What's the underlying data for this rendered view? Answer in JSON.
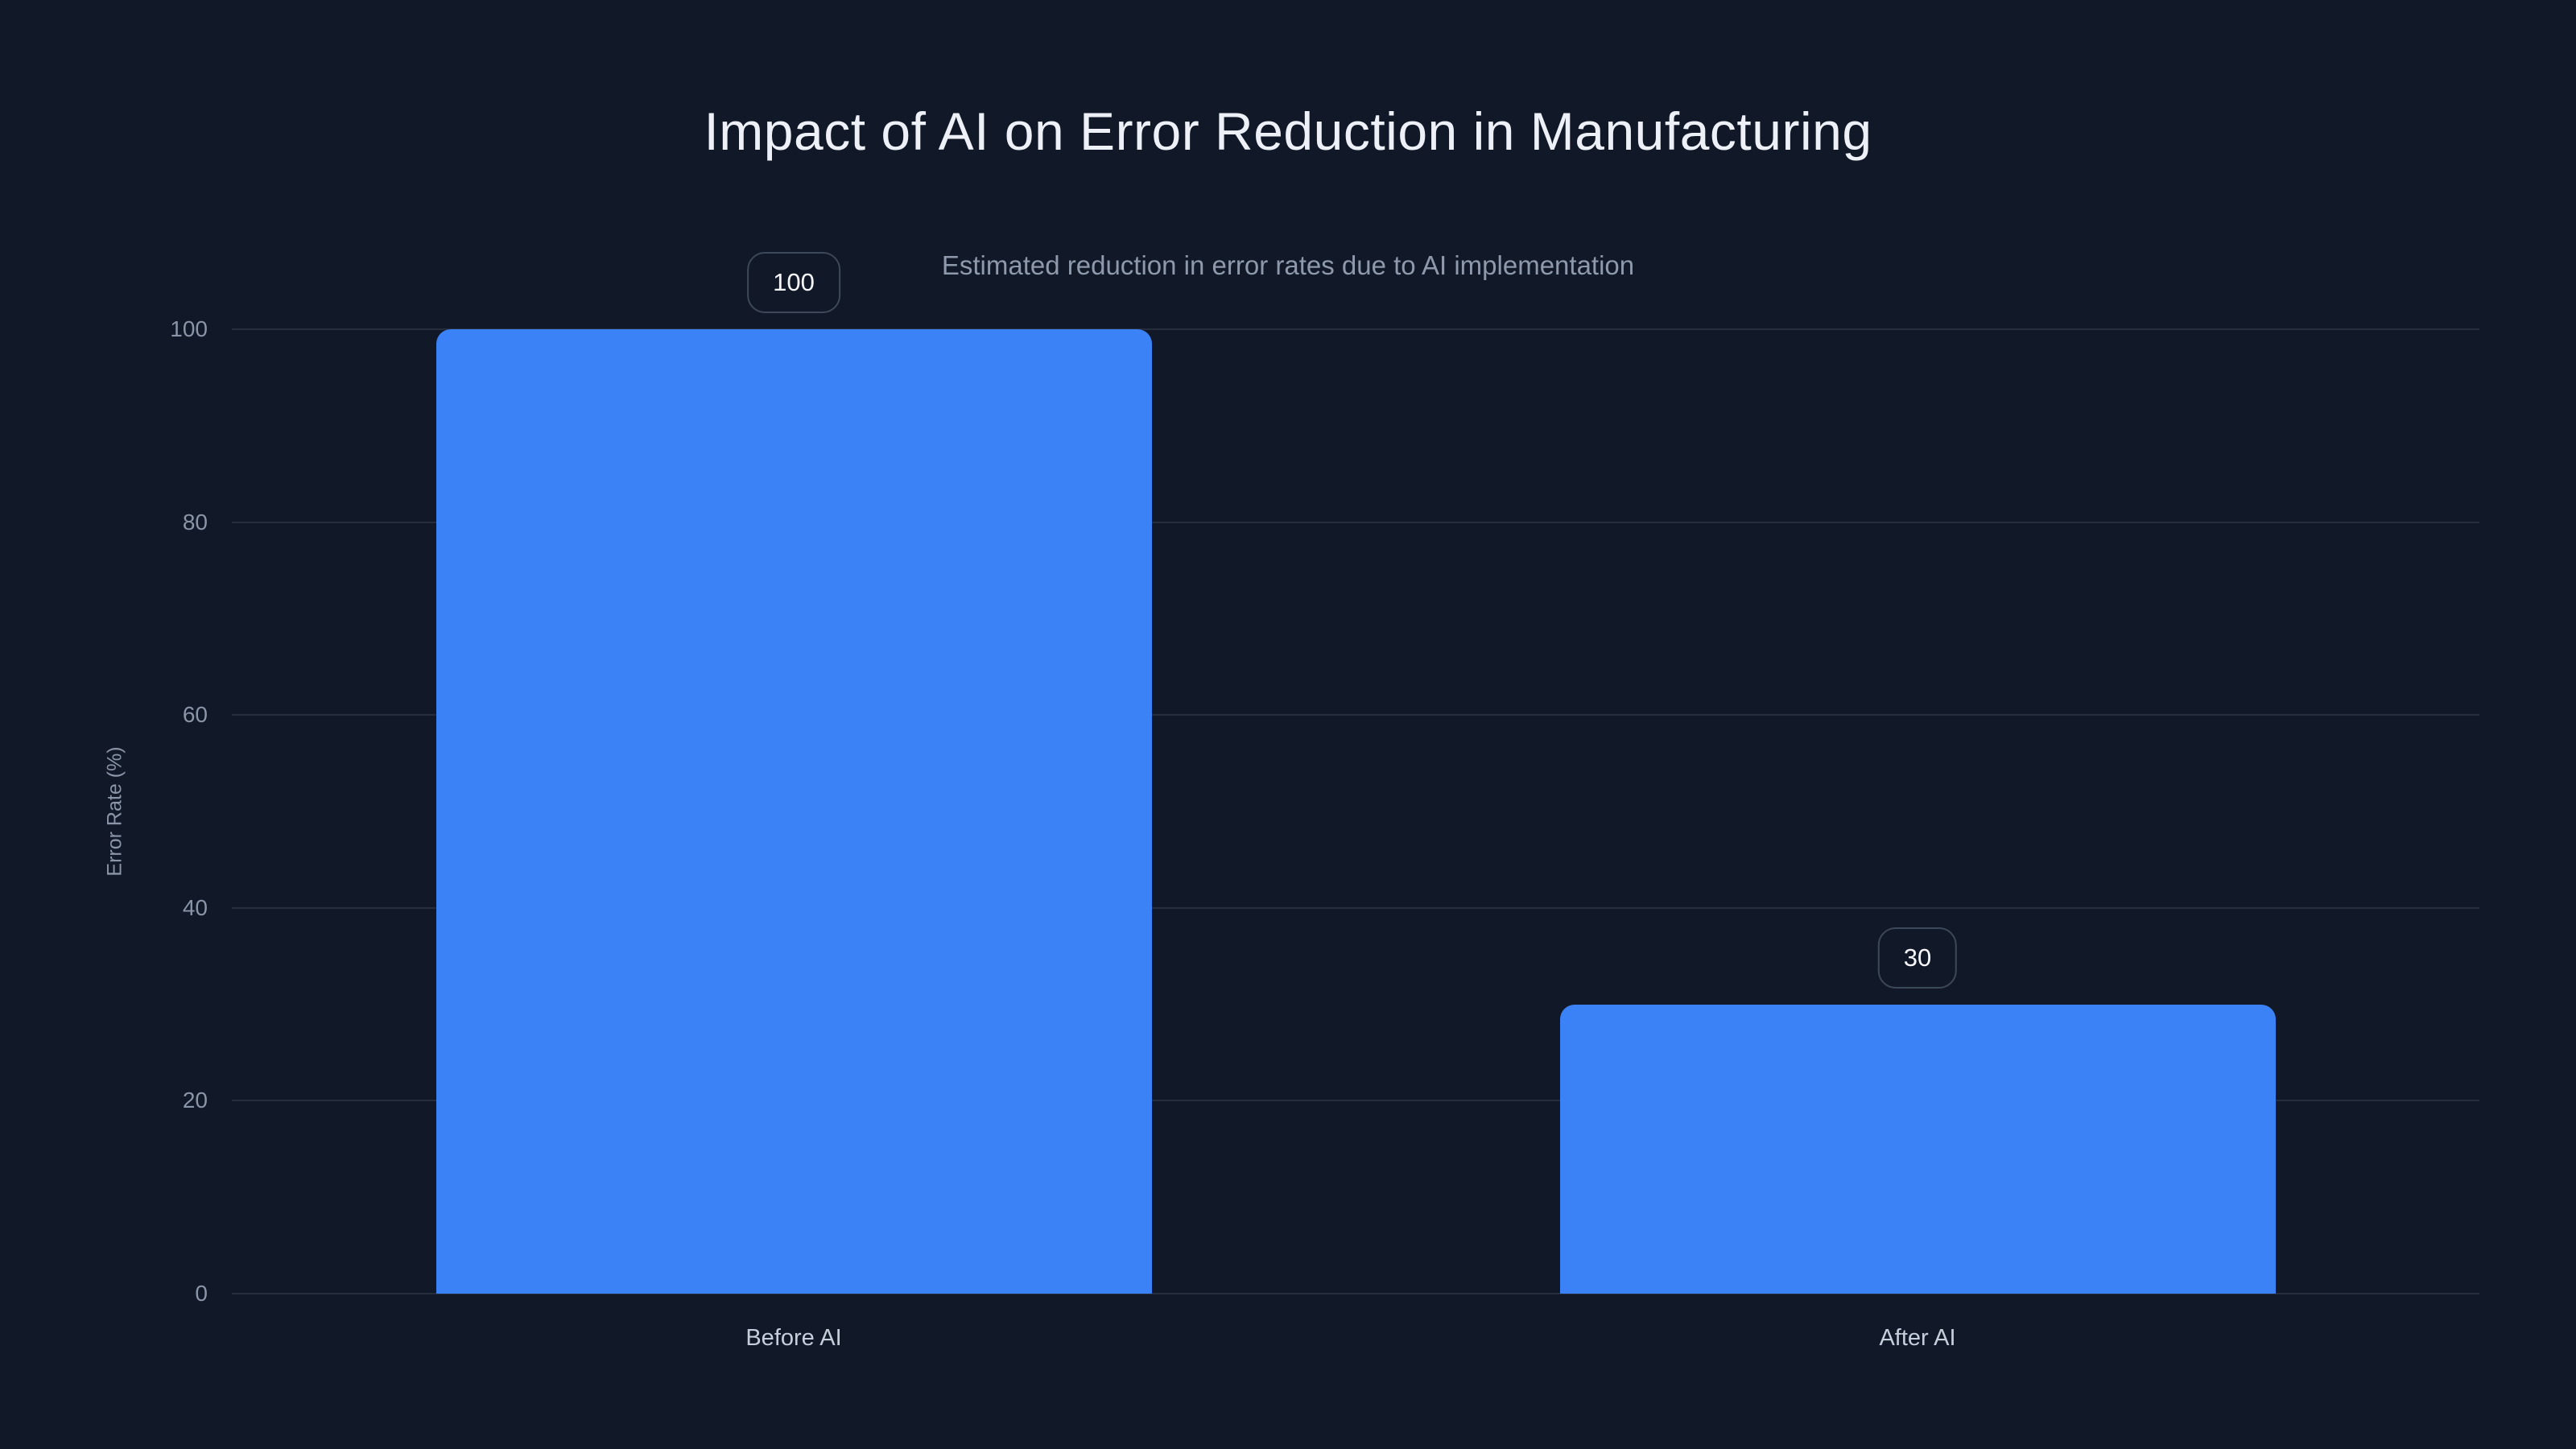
{
  "page": {
    "background_color": "#111827",
    "accent_color": "#3b82f6"
  },
  "header": {
    "title": "Impact of AI on Error Reduction in Manufacturing",
    "subtitle": "Estimated reduction in error rates due to AI implementation"
  },
  "chart_data": {
    "type": "bar",
    "categories": [
      "Before AI",
      "After AI"
    ],
    "values": [
      100,
      30
    ],
    "value_labels": [
      "100",
      "30"
    ],
    "title": "Impact of AI on Error Reduction in Manufacturing",
    "subtitle": "Estimated reduction in error rates due to AI implementation",
    "xlabel": "",
    "ylabel": "Error Rate (%)",
    "ylim": [
      0,
      100
    ],
    "yticks": [
      0,
      20,
      40,
      60,
      80,
      100
    ],
    "grid": true,
    "legend": false,
    "bar_color": "#3b82f6",
    "gridline_color": "rgba(148,163,184,0.16)"
  }
}
